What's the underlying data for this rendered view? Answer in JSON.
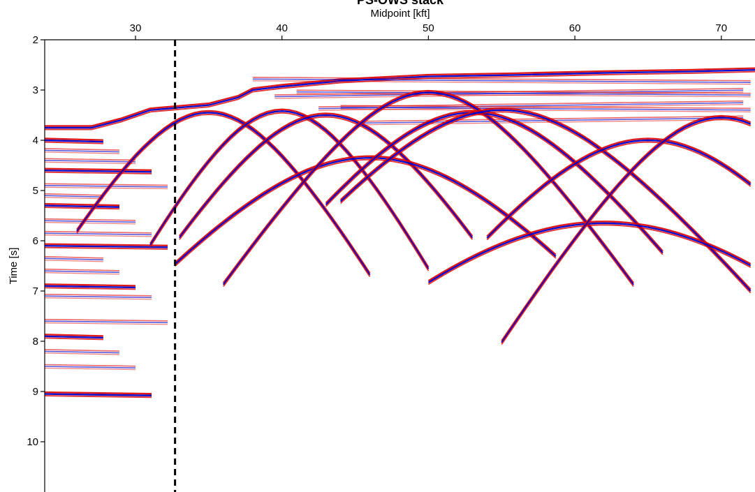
{
  "chart_data": {
    "type": "heatmap",
    "title": "PS-OWS stack",
    "xlabel": "Midpoint [kft]",
    "ylabel": "Time [s]",
    "xlim": [
      23.8,
      72.3
    ],
    "ylim": [
      11.0,
      2.0
    ],
    "x_axis_position": "top",
    "y_axis_inverted": true,
    "x_ticks": [
      30,
      40,
      50,
      60,
      70
    ],
    "y_ticks": [
      2,
      3,
      4,
      5,
      6,
      7,
      8,
      9,
      10
    ],
    "x_tick_labels": [
      "30",
      "40",
      "50",
      "60",
      "70"
    ],
    "y_tick_labels": [
      "2",
      "3",
      "4",
      "5",
      "6",
      "7",
      "8",
      "9",
      "10"
    ],
    "colormap": {
      "name": "seismic",
      "negative": "#0000cc",
      "zero": "#ffffff",
      "positive": "#dd0000"
    },
    "grid": false,
    "marker_line": {
      "x": 32.7,
      "style": "dashed",
      "color": "#000000"
    },
    "seafloor_profile": {
      "x": [
        23.8,
        27,
        29,
        31,
        33,
        35,
        37,
        38,
        40,
        44,
        50,
        56,
        62,
        68,
        72.3
      ],
      "t": [
        3.75,
        3.75,
        3.6,
        3.4,
        3.35,
        3.3,
        3.15,
        3.0,
        2.93,
        2.82,
        2.73,
        2.7,
        2.66,
        2.63,
        2.6
      ]
    },
    "left_flat_reflectors_t": [
      4.0,
      4.2,
      4.4,
      4.6,
      4.9,
      5.1,
      5.3,
      5.6,
      5.85,
      6.1,
      6.35,
      6.6,
      6.9,
      7.1,
      7.6,
      7.9,
      8.2,
      8.5,
      9.05
    ],
    "right_reflectors_t0": [
      2.85,
      3.0,
      3.1,
      3.25,
      3.4,
      3.55
    ],
    "diffractions": [
      {
        "x0": 35.0,
        "t0": 3.45,
        "k": 0.13,
        "x_range": [
          26,
          46
        ]
      },
      {
        "x0": 40.0,
        "t0": 3.42,
        "k": 0.14,
        "x_range": [
          31,
          50
        ]
      },
      {
        "x0": 43.0,
        "t0": 3.5,
        "k": 0.12,
        "x_range": [
          33,
          53
        ]
      },
      {
        "x0": 46.0,
        "t0": 4.35,
        "k": 0.09,
        "x_range": [
          32.7,
          59
        ]
      },
      {
        "x0": 50.0,
        "t0": 3.05,
        "k": 0.11,
        "x_range": [
          36,
          64
        ]
      },
      {
        "x0": 53.0,
        "t0": 3.45,
        "k": 0.1,
        "x_range": [
          43,
          66
        ]
      },
      {
        "x0": 55.0,
        "t0": 3.4,
        "k": 0.09,
        "x_range": [
          44,
          72.3
        ]
      },
      {
        "x0": 62.0,
        "t0": 5.65,
        "k": 0.08,
        "x_range": [
          50,
          72.3
        ]
      },
      {
        "x0": 65.0,
        "t0": 4.0,
        "k": 0.1,
        "x_range": [
          54,
          72.3
        ]
      },
      {
        "x0": 70.0,
        "t0": 3.55,
        "k": 0.12,
        "x_range": [
          55,
          72.3
        ]
      }
    ]
  }
}
